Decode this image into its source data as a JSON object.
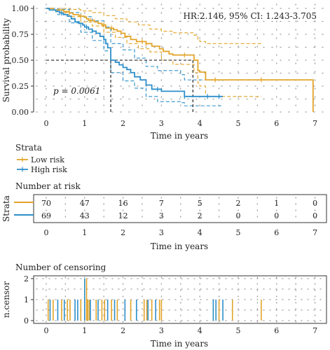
{
  "chart_data": [
    {
      "type": "line",
      "subtype": "kaplan-meier survival curve",
      "xlabel": "Time in years",
      "ylabel": "Survival probability",
      "xlim": [
        0,
        7
      ],
      "ylim": [
        0,
        1
      ],
      "x_ticks": [
        "0",
        "1",
        "2",
        "3",
        "4",
        "5",
        "6",
        "7"
      ],
      "y_ticks": [
        "0.00",
        "0.25",
        "0.50",
        "0.75",
        "1.00"
      ],
      "grid": "dotted",
      "annotation_hr": "HR:2.146, 95% CI: 1.243-3.705",
      "annotation_p": "p = 0.0061",
      "median_survival": [
        {
          "series": "High risk",
          "x": 1.68,
          "y": 0.5
        },
        {
          "series": "Low risk",
          "x": 3.82,
          "y": 0.5
        }
      ],
      "series": [
        {
          "name": "Low risk",
          "color": "#E2A52A",
          "steps": [
            [
              0,
              1.0
            ],
            [
              0.12,
              1.0
            ],
            [
              0.18,
              0.985
            ],
            [
              0.35,
              0.985
            ],
            [
              0.45,
              0.97
            ],
            [
              0.6,
              0.955
            ],
            [
              0.7,
              0.94
            ],
            [
              0.85,
              0.925
            ],
            [
              1.0,
              0.915
            ],
            [
              1.05,
              0.9
            ],
            [
              1.1,
              0.885
            ],
            [
              1.25,
              0.87
            ],
            [
              1.35,
              0.855
            ],
            [
              1.45,
              0.84
            ],
            [
              1.55,
              0.81
            ],
            [
              1.75,
              0.795
            ],
            [
              1.85,
              0.78
            ],
            [
              1.95,
              0.76
            ],
            [
              2.05,
              0.73
            ],
            [
              2.2,
              0.7
            ],
            [
              2.35,
              0.68
            ],
            [
              2.6,
              0.66
            ],
            [
              2.75,
              0.635
            ],
            [
              2.95,
              0.61
            ],
            [
              3.05,
              0.585
            ],
            [
              3.2,
              0.56
            ],
            [
              3.3,
              0.55
            ],
            [
              3.85,
              0.5
            ],
            [
              3.95,
              0.4
            ],
            [
              4.0,
              0.385
            ],
            [
              4.15,
              0.31
            ],
            [
              6.95,
              0.0
            ]
          ],
          "ci_upper": [
            [
              0,
              1.0
            ],
            [
              0.3,
              1.0
            ],
            [
              0.6,
              0.99
            ],
            [
              0.9,
              0.975
            ],
            [
              1.2,
              0.96
            ],
            [
              1.5,
              0.93
            ],
            [
              1.8,
              0.9
            ],
            [
              2.1,
              0.87
            ],
            [
              2.4,
              0.84
            ],
            [
              2.7,
              0.8
            ],
            [
              3.0,
              0.78
            ],
            [
              3.3,
              0.765
            ],
            [
              3.85,
              0.74
            ],
            [
              3.95,
              0.7
            ],
            [
              4.0,
              0.68
            ],
            [
              4.15,
              0.66
            ],
            [
              5.6,
              0.66
            ]
          ],
          "ci_lower": [
            [
              0,
              1.0
            ],
            [
              0.3,
              0.96
            ],
            [
              0.6,
              0.92
            ],
            [
              0.9,
              0.87
            ],
            [
              1.2,
              0.83
            ],
            [
              1.5,
              0.77
            ],
            [
              1.8,
              0.72
            ],
            [
              2.1,
              0.66
            ],
            [
              2.4,
              0.61
            ],
            [
              2.7,
              0.58
            ],
            [
              3.0,
              0.5
            ],
            [
              3.3,
              0.46
            ],
            [
              3.85,
              0.38
            ],
            [
              3.95,
              0.28
            ],
            [
              4.0,
              0.25
            ],
            [
              4.15,
              0.15
            ],
            [
              5.6,
              0.15
            ]
          ]
        },
        {
          "name": "High risk",
          "color": "#2E8FC9",
          "steps": [
            [
              0,
              1.0
            ],
            [
              0.08,
              0.985
            ],
            [
              0.25,
              0.97
            ],
            [
              0.35,
              0.955
            ],
            [
              0.45,
              0.94
            ],
            [
              0.55,
              0.925
            ],
            [
              0.65,
              0.9
            ],
            [
              0.75,
              0.87
            ],
            [
              0.85,
              0.855
            ],
            [
              0.95,
              0.84
            ],
            [
              1.0,
              0.82
            ],
            [
              1.1,
              0.8
            ],
            [
              1.2,
              0.78
            ],
            [
              1.3,
              0.76
            ],
            [
              1.4,
              0.73
            ],
            [
              1.5,
              0.7
            ],
            [
              1.55,
              0.66
            ],
            [
              1.6,
              0.62
            ],
            [
              1.68,
              0.5
            ],
            [
              1.8,
              0.48
            ],
            [
              1.9,
              0.455
            ],
            [
              2.0,
              0.43
            ],
            [
              2.1,
              0.41
            ],
            [
              2.2,
              0.38
            ],
            [
              2.3,
              0.34
            ],
            [
              2.45,
              0.31
            ],
            [
              2.6,
              0.26
            ],
            [
              2.75,
              0.22
            ],
            [
              3.0,
              0.2
            ],
            [
              3.5,
              0.2
            ],
            [
              3.6,
              0.15
            ],
            [
              4.6,
              0.15
            ]
          ],
          "ci_upper": [
            [
              0,
              1.0
            ],
            [
              0.3,
              0.99
            ],
            [
              0.6,
              0.96
            ],
            [
              0.9,
              0.92
            ],
            [
              1.2,
              0.88
            ],
            [
              1.5,
              0.82
            ],
            [
              1.68,
              0.66
            ],
            [
              2.0,
              0.6
            ],
            [
              2.3,
              0.52
            ],
            [
              2.6,
              0.44
            ],
            [
              2.9,
              0.4
            ],
            [
              3.5,
              0.36
            ],
            [
              3.6,
              0.31
            ],
            [
              4.6,
              0.3
            ]
          ],
          "ci_lower": [
            [
              0,
              1.0
            ],
            [
              0.3,
              0.94
            ],
            [
              0.6,
              0.86
            ],
            [
              0.9,
              0.77
            ],
            [
              1.2,
              0.69
            ],
            [
              1.5,
              0.59
            ],
            [
              1.68,
              0.38
            ],
            [
              2.0,
              0.3
            ],
            [
              2.3,
              0.23
            ],
            [
              2.6,
              0.15
            ],
            [
              2.9,
              0.1
            ],
            [
              3.5,
              0.09
            ],
            [
              3.6,
              0.06
            ],
            [
              4.6,
              0.06
            ]
          ]
        }
      ],
      "censor_marks": {
        "Low risk": [
          [
            0.6,
            0.955
          ],
          [
            0.9,
            0.925
          ],
          [
            1.15,
            0.885
          ],
          [
            1.5,
            0.84
          ],
          [
            1.7,
            0.81
          ],
          [
            2.5,
            0.68
          ],
          [
            2.6,
            0.66
          ],
          [
            3.6,
            0.55
          ],
          [
            4.4,
            0.31
          ],
          [
            5.6,
            0.31
          ]
        ],
        "High risk": [
          [
            0.4,
            0.955
          ],
          [
            1.05,
            0.82
          ],
          [
            2.9,
            0.22
          ],
          [
            3.6,
            0.15
          ],
          [
            4.2,
            0.15
          ],
          [
            4.5,
            0.15
          ]
        ]
      }
    },
    {
      "type": "legend",
      "title": "Strata",
      "entries": [
        {
          "label": "Low risk",
          "color": "#E2A52A"
        },
        {
          "label": "High risk",
          "color": "#2E8FC9"
        }
      ]
    },
    {
      "type": "table",
      "title": "Number at risk",
      "ylabel": "Strata",
      "xlabel": "Time in years",
      "x": [
        0,
        1,
        2,
        3,
        4,
        5,
        6,
        7
      ],
      "x_ticks": [
        "0",
        "1",
        "2",
        "3",
        "4",
        "5",
        "6",
        "7"
      ],
      "rows": [
        {
          "name": "Low risk",
          "color": "#E2A52A",
          "values": [
            "70",
            "47",
            "16",
            "7",
            "5",
            "2",
            "1",
            "0"
          ]
        },
        {
          "name": "High risk",
          "color": "#2E8FC9",
          "values": [
            "69",
            "43",
            "12",
            "3",
            "2",
            "0",
            "0",
            "0"
          ]
        }
      ]
    },
    {
      "type": "bar",
      "title": "Number of censoring",
      "ylabel": "n.censor",
      "xlabel": "Time in years",
      "xlim": [
        0,
        7
      ],
      "ylim": [
        0,
        2
      ],
      "x_ticks": [
        "0",
        "1",
        "2",
        "3",
        "4",
        "5",
        "6",
        "7"
      ],
      "y_ticks": [
        "0",
        "1",
        "2"
      ],
      "series": [
        {
          "name": "Low risk",
          "color": "#E2A52A",
          "x": [
            0.05,
            0.18,
            0.4,
            0.55,
            0.62,
            0.9,
            1.05,
            1.08,
            1.12,
            1.3,
            1.45,
            1.52,
            1.7,
            1.85,
            2.2,
            2.55,
            2.62,
            2.75,
            2.95,
            3.0,
            4.5,
            4.85,
            5.6
          ],
          "values": [
            1,
            1,
            1,
            1,
            1,
            1,
            2,
            1,
            1,
            1,
            1,
            1,
            1,
            1,
            1,
            1,
            1,
            1,
            1,
            1,
            1,
            1,
            1
          ]
        },
        {
          "name": "High risk",
          "color": "#2E8FC9",
          "x": [
            0.1,
            0.3,
            0.47,
            0.75,
            0.82,
            1.0,
            1.15,
            1.35,
            1.6,
            1.78,
            2.05,
            2.35,
            2.65,
            2.85,
            4.35,
            4.42,
            4.6
          ],
          "values": [
            1,
            1,
            1,
            1,
            1,
            2,
            1,
            1,
            1,
            1,
            1,
            1,
            1,
            1,
            1,
            1,
            1
          ]
        }
      ]
    }
  ]
}
